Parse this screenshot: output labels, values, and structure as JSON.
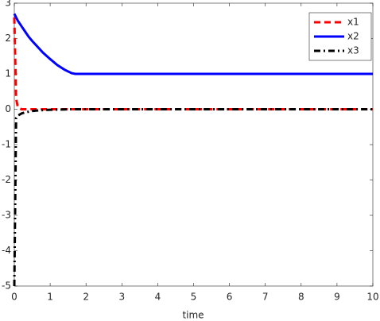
{
  "chart_data": {
    "type": "line",
    "xlabel": "time",
    "x": [
      0,
      0.05,
      0.1,
      0.2,
      0.3,
      0.4,
      0.5,
      0.6,
      0.8,
      1,
      1.2,
      1.4,
      1.6,
      1.7,
      2,
      3,
      4,
      5,
      6,
      7,
      8,
      9,
      10
    ],
    "series": [
      {
        "name": "x1",
        "color": "#ff0000",
        "style": "dashed",
        "values": [
          2.6,
          0.3,
          0.05,
          0,
          0,
          0,
          0,
          0,
          0,
          0,
          0,
          0,
          0,
          0,
          0,
          0,
          0,
          0,
          0,
          0,
          0,
          0,
          0
        ]
      },
      {
        "name": "x2",
        "color": "#0000ff",
        "style": "solid",
        "values": [
          2.7,
          2.6,
          2.5,
          2.35,
          2.2,
          2.05,
          1.93,
          1.82,
          1.6,
          1.42,
          1.25,
          1.12,
          1.02,
          1,
          1,
          1,
          1,
          1,
          1,
          1,
          1,
          1,
          1
        ]
      },
      {
        "name": "x3",
        "color": "#000000",
        "style": "dashdot",
        "values": [
          -5,
          -0.25,
          -0.18,
          -0.12,
          -0.09,
          -0.07,
          -0.05,
          -0.04,
          -0.025,
          -0.015,
          -0.01,
          -0.005,
          0,
          0,
          0,
          0,
          0,
          0,
          0,
          0,
          0,
          0,
          0
        ]
      }
    ],
    "xlim": [
      0,
      10
    ],
    "xticks": [
      0,
      1,
      2,
      3,
      4,
      5,
      6,
      7,
      8,
      9,
      10
    ],
    "ylim": [
      -5,
      3
    ],
    "yticks": [
      -5,
      -4,
      -3,
      -2,
      -1,
      0,
      1,
      2,
      3
    ],
    "legend": "northeast"
  }
}
